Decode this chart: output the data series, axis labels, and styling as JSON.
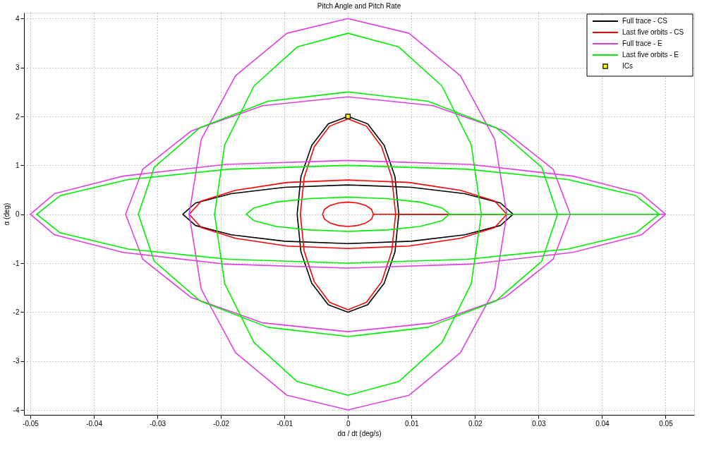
{
  "chart_data": {
    "type": "line",
    "title": "Pitch Angle and Pitch Rate",
    "xlabel": "dα / dt (deg/s)",
    "ylabel": "α (deg)",
    "xlim": [
      -0.051,
      0.0545
    ],
    "ylim": [
      -4.1,
      4.12
    ],
    "xticks": [
      -0.05,
      -0.04,
      -0.03,
      -0.02,
      -0.01,
      0,
      0.01,
      0.02,
      0.03,
      0.04,
      0.05
    ],
    "yticks": [
      -4,
      -3,
      -2,
      -1,
      0,
      1,
      2,
      3,
      4
    ],
    "grid": true,
    "legend": "top right",
    "line_style": "solid",
    "series": [
      {
        "name": "Full trace - CS",
        "color": "#000000",
        "x": [
          0.026,
          0.024,
          0.0184,
          0.01,
          0,
          -0.01,
          -0.0184,
          -0.024,
          -0.026,
          -0.024,
          -0.0184,
          -0.01,
          0,
          0.01,
          0.0184,
          0.024,
          0.026,
          0.008,
          0.0074,
          0.0057,
          0.0031,
          0,
          -0.0031,
          -0.0057,
          -0.0074,
          -0.008,
          -0.0074,
          -0.0057,
          -0.0031,
          0,
          0.0031,
          0.0057,
          0.0074,
          0.008
        ],
        "values": [
          0,
          0.23,
          0.42,
          0.55,
          0.6,
          0.55,
          0.42,
          0.23,
          0,
          -0.23,
          -0.42,
          -0.55,
          -0.6,
          -0.55,
          -0.42,
          -0.23,
          0,
          0,
          0.77,
          1.41,
          1.85,
          2,
          1.85,
          1.41,
          0.77,
          0,
          -0.77,
          -1.41,
          -1.85,
          -2,
          -1.85,
          -1.41,
          -0.77,
          0
        ]
      },
      {
        "name": "Last five orbits - CS",
        "color": "#ff0000",
        "x": [
          0.025,
          0.0231,
          0.0177,
          0.0096,
          0,
          -0.0096,
          -0.0177,
          -0.0231,
          -0.025,
          -0.0231,
          -0.0177,
          -0.0096,
          0,
          0.0096,
          0.0177,
          0.0231,
          0.025,
          0.0075,
          0.0069,
          0.0053,
          0.0029,
          0,
          -0.0029,
          -0.0053,
          -0.0069,
          -0.0075,
          -0.0069,
          -0.0053,
          -0.0029,
          0,
          0.0029,
          0.0053,
          0.0069,
          0.0075,
          0.004,
          0.0037,
          0.0028,
          0.0015,
          0,
          -0.0015,
          -0.0028,
          -0.0037,
          -0.004,
          -0.0037,
          -0.0028,
          -0.0015,
          0,
          0.0015,
          0.0028,
          0.0037,
          0.004
        ],
        "values": [
          0,
          0.27,
          0.49,
          0.65,
          0.7,
          0.65,
          0.49,
          0.27,
          0,
          -0.27,
          -0.49,
          -0.65,
          -0.7,
          -0.65,
          -0.49,
          -0.27,
          0,
          0,
          0.75,
          1.38,
          1.8,
          1.95,
          1.8,
          1.38,
          0.75,
          0,
          -0.75,
          -1.38,
          -1.8,
          -1.95,
          -1.8,
          -1.38,
          -0.75,
          0,
          0,
          0.1,
          0.18,
          0.23,
          0.25,
          0.23,
          0.18,
          0.1,
          0,
          -0.1,
          -0.18,
          -0.23,
          -0.25,
          -0.23,
          -0.18,
          -0.1,
          0
        ]
      },
      {
        "name": "Full trace - E",
        "color": "#e040e0",
        "x": [
          0.05,
          0.0462,
          0.0354,
          0.0192,
          0,
          -0.0192,
          -0.0354,
          -0.0462,
          -0.05,
          -0.0462,
          -0.0354,
          -0.0192,
          0,
          0.0192,
          0.0354,
          0.0462,
          0.05,
          0.025,
          0.0231,
          0.0177,
          0.0096,
          0,
          -0.0096,
          -0.0177,
          -0.0231,
          -0.025,
          -0.0231,
          -0.0177,
          -0.0096,
          0,
          0.0096,
          0.0177,
          0.0231,
          0.025,
          0.035,
          0.0323,
          0.0247,
          0.0134,
          0,
          -0.0134,
          -0.0247,
          -0.0323,
          -0.035,
          -0.0323,
          -0.0247,
          -0.0134,
          0,
          0.0134,
          0.0247,
          0.0323,
          0.035
        ],
        "values": [
          0,
          0.42,
          0.78,
          1.02,
          1.1,
          1.02,
          0.78,
          0.42,
          0,
          -0.42,
          -0.78,
          -1.02,
          -1.1,
          -1.02,
          -0.78,
          -0.42,
          0,
          0,
          1.53,
          2.83,
          3.7,
          4.0,
          3.7,
          2.83,
          1.53,
          0,
          -1.53,
          -2.83,
          -3.7,
          -4.0,
          -3.7,
          -2.83,
          -1.53,
          0,
          0,
          0.92,
          1.7,
          2.22,
          2.4,
          2.22,
          1.7,
          0.92,
          0,
          -0.92,
          -1.7,
          -2.22,
          -2.4,
          -2.22,
          -1.7,
          -0.92,
          0
        ]
      },
      {
        "name": "Last five orbits - E",
        "color": "#00ee00",
        "x": [
          0.049,
          0.0453,
          0.0346,
          0.0188,
          0,
          -0.0188,
          -0.0346,
          -0.0453,
          -0.049,
          -0.0453,
          -0.0346,
          -0.0188,
          0,
          0.0188,
          0.0346,
          0.0453,
          0.049,
          0.021,
          0.0194,
          0.0148,
          0.008,
          0,
          -0.008,
          -0.0148,
          -0.0194,
          -0.021,
          -0.0194,
          -0.0148,
          -0.008,
          0,
          0.008,
          0.0148,
          0.0194,
          0.021,
          0.033,
          0.0305,
          0.0233,
          0.0126,
          0,
          -0.0126,
          -0.0233,
          -0.0305,
          -0.033,
          -0.0305,
          -0.0233,
          -0.0126,
          0,
          0.0126,
          0.0233,
          0.0305,
          0.033,
          0.016,
          0.0148,
          0.0113,
          0.0061,
          0,
          -0.0061,
          -0.0113,
          -0.0148,
          -0.016,
          -0.0148,
          -0.0113,
          -0.0061,
          0,
          0.0061,
          0.0113,
          0.0148,
          0.016
        ],
        "values": [
          0,
          0.38,
          0.71,
          0.92,
          1.0,
          0.92,
          0.71,
          0.38,
          0,
          -0.38,
          -0.71,
          -0.92,
          -1.0,
          -0.92,
          -0.71,
          -0.38,
          0,
          0,
          1.42,
          2.62,
          3.42,
          3.7,
          3.42,
          2.62,
          1.42,
          0,
          -1.42,
          -2.62,
          -3.42,
          -3.7,
          -3.42,
          -2.62,
          -1.42,
          0,
          0,
          0.96,
          1.77,
          2.31,
          2.5,
          2.31,
          1.77,
          0.96,
          0,
          -0.96,
          -1.77,
          -2.31,
          -2.5,
          -2.31,
          -1.77,
          -0.96,
          0,
          0,
          0.13,
          0.25,
          0.32,
          0.35,
          0.32,
          0.25,
          0.13,
          0,
          -0.13,
          -0.25,
          -0.32,
          -0.35,
          -0.32,
          -0.25,
          -0.13,
          0
        ]
      },
      {
        "name": "ICs",
        "color": "#ffff00",
        "type": "scatter",
        "marker": "square",
        "x": [
          0
        ],
        "values": [
          2
        ]
      }
    ]
  }
}
